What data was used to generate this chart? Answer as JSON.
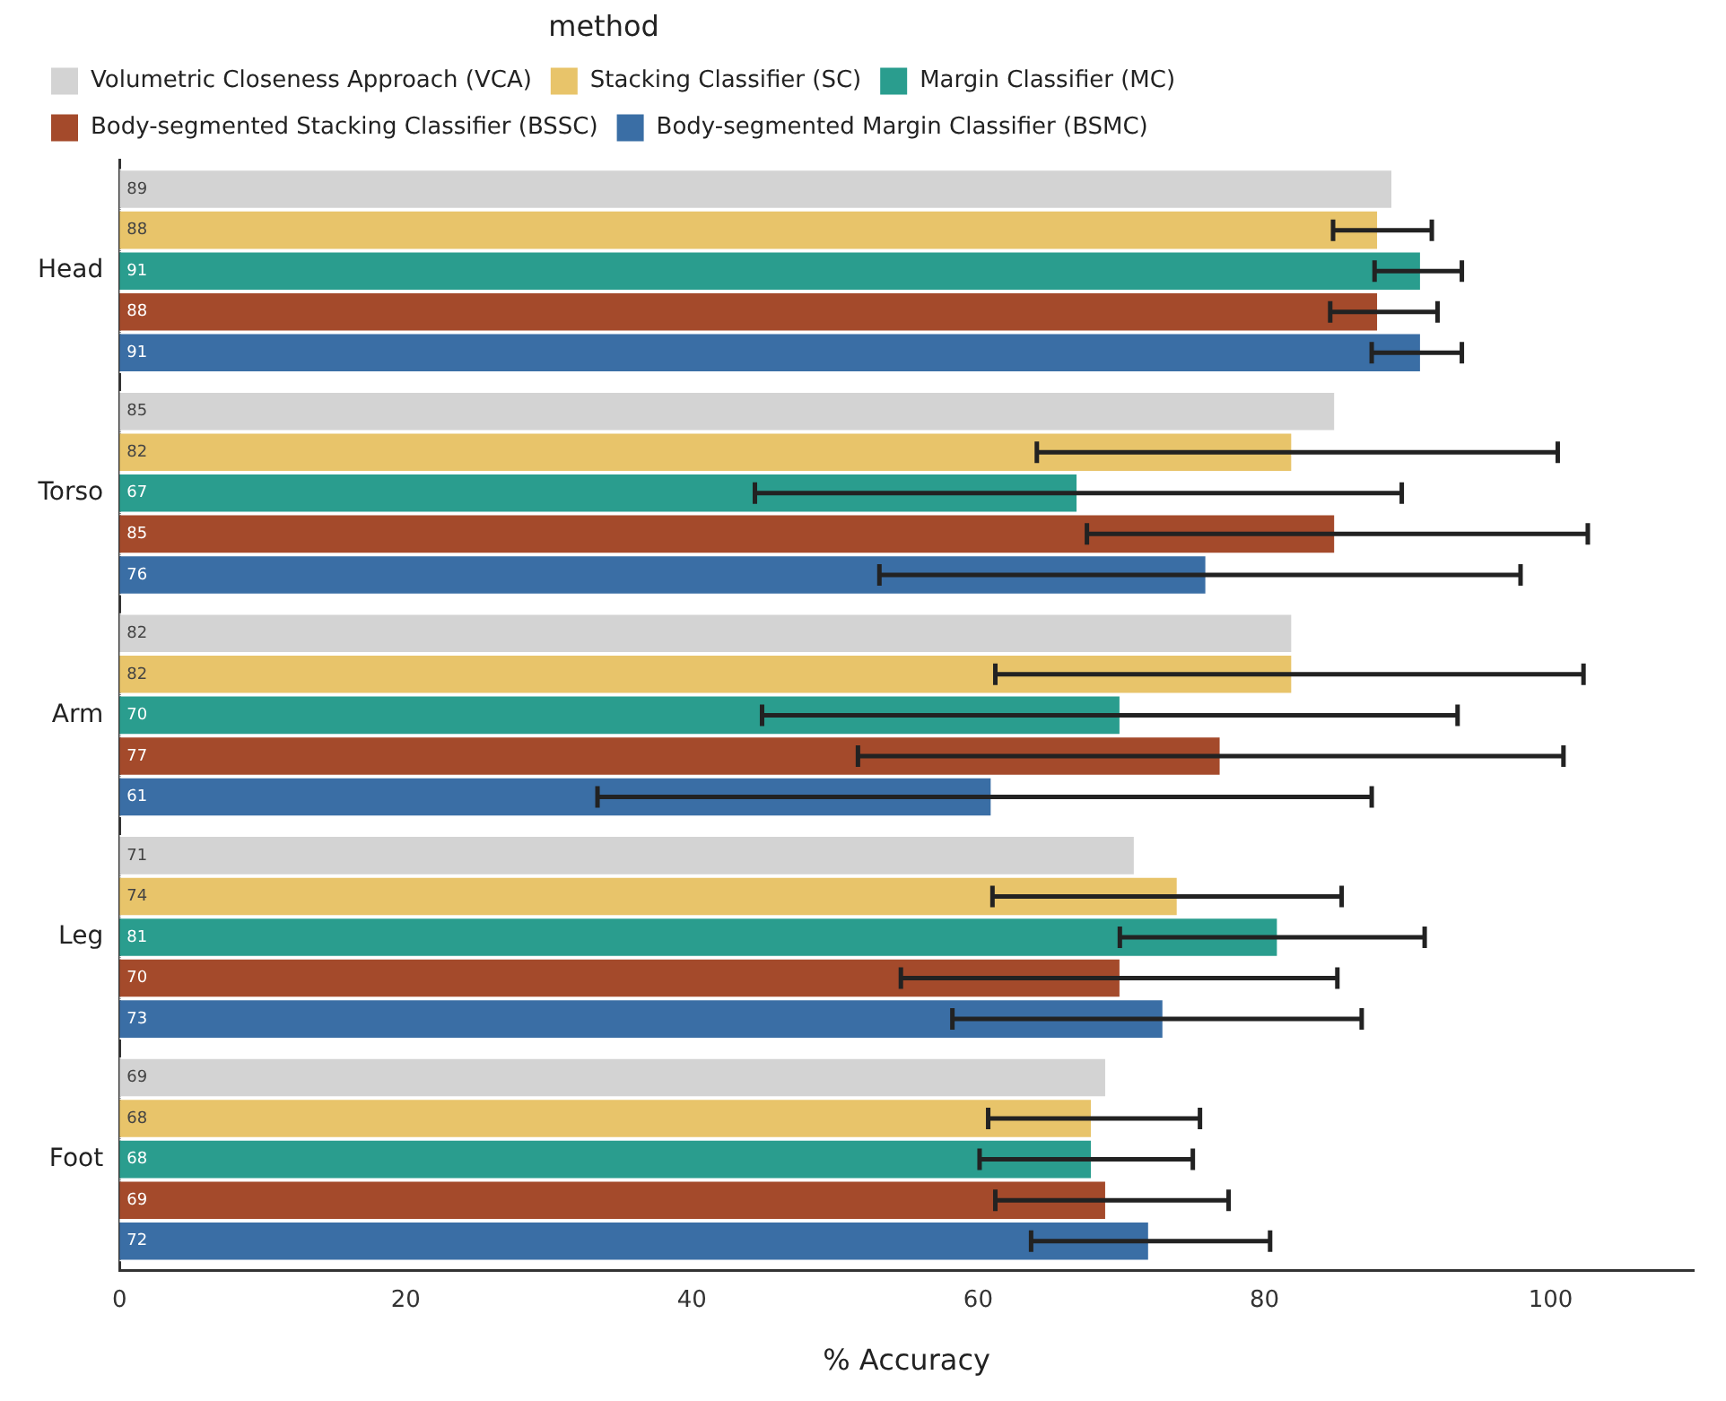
{
  "chart_data": {
    "type": "bar",
    "orientation": "horizontal",
    "xlabel": "% Accuracy",
    "legend_title": "method",
    "legend": "top",
    "grid": false,
    "data_labels": true,
    "categories": [
      "Head",
      "Torso",
      "Arm",
      "Leg",
      "Foot"
    ],
    "xlim": [
      0,
      110
    ],
    "xticks": [
      0,
      20,
      40,
      60,
      80,
      100
    ],
    "series": [
      {
        "name": "Volumetric Closeness Approach (VCA)",
        "color": "#d3d3d3",
        "values": [
          89,
          85,
          82,
          71,
          69
        ]
      },
      {
        "name": "Stacking Classifier (SC)",
        "color": "#e8c46a",
        "values": [
          88,
          82,
          82,
          74,
          68
        ],
        "errors": [
          [
            84.8,
            91.7
          ],
          [
            64.1,
            100.5
          ],
          [
            61.2,
            102.3
          ],
          [
            61.0,
            85.4
          ],
          [
            60.7,
            75.5
          ]
        ]
      },
      {
        "name": "Margin Classifier (MC)",
        "color": "#2a9d8e",
        "values": [
          91,
          67,
          70,
          81,
          68
        ],
        "errors": [
          [
            87.7,
            93.8
          ],
          [
            44.4,
            89.6
          ],
          [
            44.9,
            93.5
          ],
          [
            69.9,
            91.2
          ],
          [
            60.1,
            75.0
          ]
        ]
      },
      {
        "name": "Body-segmented Stacking Classifier (BSSC)",
        "color": "#a44a2b",
        "values": [
          88,
          85,
          77,
          70,
          69
        ],
        "errors": [
          [
            84.6,
            92.1
          ],
          [
            67.6,
            102.6
          ],
          [
            51.6,
            100.9
          ],
          [
            54.6,
            85.1
          ],
          [
            61.2,
            77.5
          ]
        ]
      },
      {
        "name": "Body-segmented Margin Classifier (BSMC)",
        "color": "#3a6ea5",
        "values": [
          91,
          76,
          61,
          73,
          72
        ],
        "errors": [
          [
            87.5,
            93.8
          ],
          [
            53.1,
            97.9
          ],
          [
            33.4,
            87.5
          ],
          [
            58.2,
            86.8
          ],
          [
            63.7,
            80.4
          ]
        ]
      }
    ]
  }
}
